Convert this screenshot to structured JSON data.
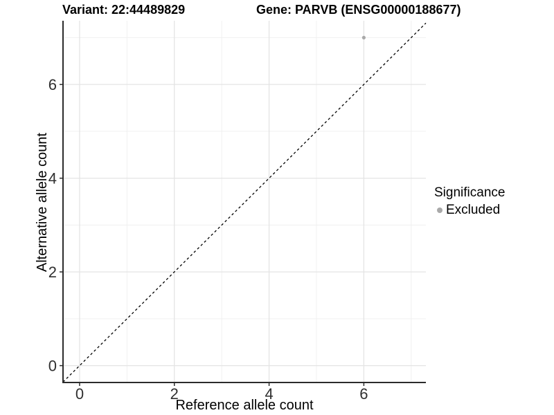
{
  "chart_data": {
    "type": "scatter",
    "titles": {
      "left": "Variant: 22:44489829",
      "right": "Gene: PARVB (ENSG00000188677)"
    },
    "xlabel": "Reference allele count",
    "ylabel": "Alternative allele count",
    "x_ticks": [
      0,
      2,
      4,
      6
    ],
    "y_ticks": [
      0,
      2,
      4,
      6
    ],
    "xlim": [
      -0.35,
      7.31
    ],
    "ylim": [
      -0.36,
      7.36
    ],
    "grid": {
      "on": true,
      "integer_lines_from": 0,
      "integer_lines_to": 7,
      "major_every": 2,
      "major_color": "#e4e4e4",
      "minor_color": "#f0f0f0"
    },
    "reference_line": {
      "equation": "y = x",
      "style": "dashed",
      "color": "#000000"
    },
    "series": [
      {
        "name": "Excluded",
        "color": "#a9a9a9",
        "points": [
          {
            "x": 6,
            "y": 7
          }
        ]
      }
    ],
    "legend": {
      "title": "Significance",
      "position": "right",
      "entries": [
        {
          "label": "Excluded",
          "color": "#a9a9a9"
        }
      ]
    },
    "colors": {
      "axis_line": "#2b2b2b",
      "tick_mark": "#2b2b2b",
      "tick_label": "#2f2f2f"
    }
  }
}
